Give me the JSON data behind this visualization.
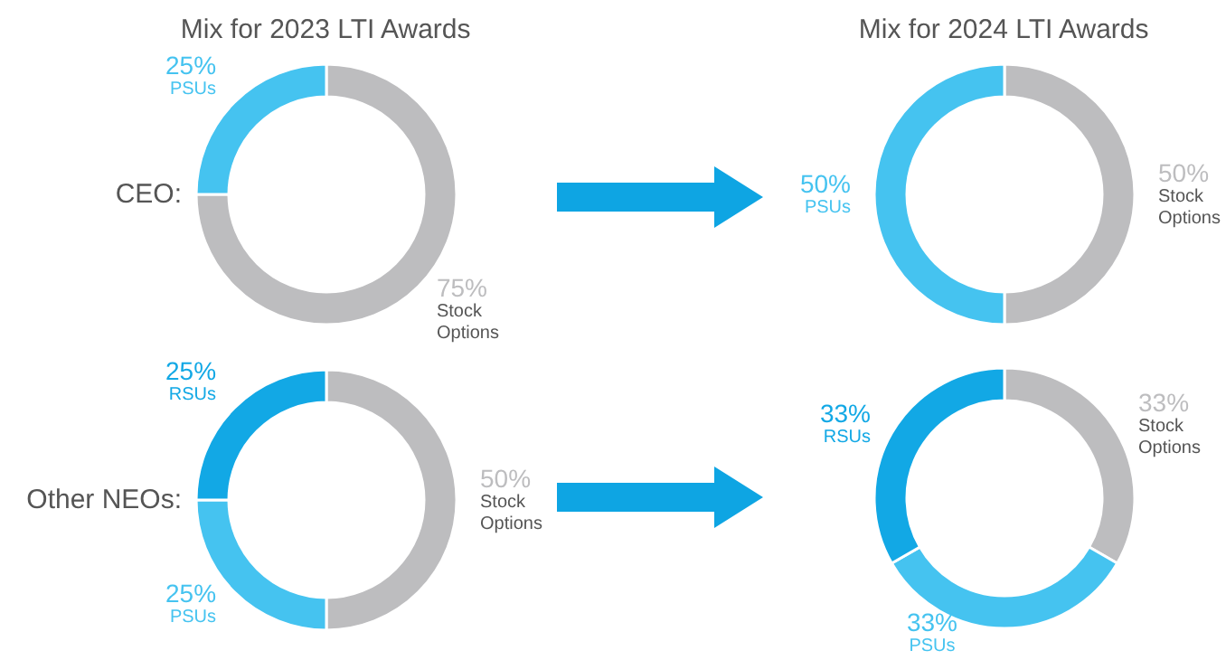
{
  "chart_data": [
    {
      "type": "donut",
      "title": "Mix for 2023 LTI Awards",
      "annotations": [
        "CEO:"
      ],
      "categories": [
        "Stock Options",
        "PSUs"
      ],
      "values": [
        75,
        25
      ],
      "colors": [
        "#bdbdbf",
        "#45c3f0"
      ],
      "value_labels": [
        "75%",
        "25%"
      ]
    },
    {
      "type": "donut",
      "title": "Mix for 2024 LTI Awards",
      "categories": [
        "Stock Options",
        "PSUs"
      ],
      "values": [
        50,
        50
      ],
      "colors": [
        "#bdbdbf",
        "#45c3f0"
      ],
      "value_labels": [
        "50%",
        "50%"
      ]
    },
    {
      "type": "donut",
      "annotations": [
        "Other NEOs:"
      ],
      "categories": [
        "Stock Options",
        "PSUs",
        "RSUs"
      ],
      "values": [
        50,
        25,
        25
      ],
      "colors": [
        "#bdbdbf",
        "#45c3f0",
        "#12a8e5"
      ],
      "value_labels": [
        "50%",
        "25%",
        "25%"
      ]
    },
    {
      "type": "donut",
      "categories": [
        "Stock Options",
        "PSUs",
        "RSUs"
      ],
      "values": [
        33,
        33,
        33
      ],
      "colors": [
        "#bdbdbf",
        "#45c3f0",
        "#12a8e5"
      ],
      "value_labels": [
        "33%",
        "33%",
        "33%"
      ]
    }
  ]
}
